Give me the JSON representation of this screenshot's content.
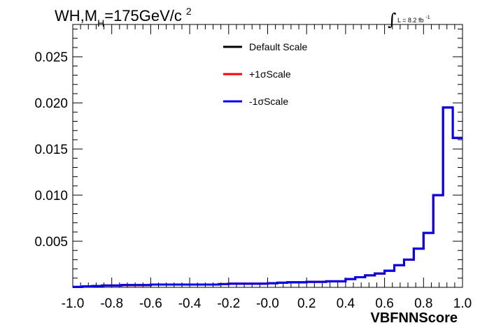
{
  "chart_data": {
    "type": "line",
    "title": {
      "prefix": "WH,M",
      "sub": "H",
      "suffix": "=175GeV/c",
      "sup": "2"
    },
    "lumi": {
      "integral": "∫",
      "text": "L = 8.2 fb",
      "sup": "-1"
    },
    "xlabel": "VBFNNScore",
    "ylabel": "",
    "xlim": [
      -1.0,
      1.0
    ],
    "ylim": [
      0,
      0.0285
    ],
    "x_ticks": [
      "-1.0",
      "-0.8",
      "-0.6",
      "-0.4",
      "-0.2",
      "-0.0",
      "0.2",
      "0.4",
      "0.6",
      "0.8",
      "1.0"
    ],
    "y_ticks": [
      "0.005",
      "0.010",
      "0.015",
      "0.020",
      "0.025"
    ],
    "legend_position": "top-center",
    "grid": false,
    "bin_edges": [
      -1.0,
      -0.95,
      -0.9,
      -0.85,
      -0.8,
      -0.75,
      -0.7,
      -0.65,
      -0.6,
      -0.55,
      -0.5,
      -0.45,
      -0.4,
      -0.35,
      -0.3,
      -0.25,
      -0.2,
      -0.15,
      -0.1,
      -0.05,
      0.0,
      0.05,
      0.1,
      0.15,
      0.2,
      0.25,
      0.3,
      0.35,
      0.4,
      0.45,
      0.5,
      0.55,
      0.6,
      0.65,
      0.7,
      0.75,
      0.8,
      0.85,
      0.9,
      0.95,
      1.0
    ],
    "series": [
      {
        "name": "Default Scale",
        "color": "#000000",
        "values": [
          5e-05,
          0.0001,
          0.00015,
          0.0002,
          0.0002,
          0.00025,
          0.00025,
          0.00025,
          0.0003,
          0.0003,
          0.0003,
          0.0003,
          0.0003,
          0.0003,
          0.0003,
          0.00035,
          0.0004,
          0.0004,
          0.0004,
          0.0004,
          0.00045,
          0.0005,
          0.00055,
          0.00055,
          0.0006,
          0.0006,
          0.00065,
          0.00065,
          0.0009,
          0.0011,
          0.0013,
          0.0015,
          0.0018,
          0.0024,
          0.003,
          0.0042,
          0.0059,
          0.01,
          0.0195,
          0.0162
        ]
      },
      {
        "name": "+1σScale",
        "color": "#ff0000",
        "values": [
          5e-05,
          0.0001,
          0.00015,
          0.0002,
          0.0002,
          0.00025,
          0.00025,
          0.00025,
          0.0003,
          0.0003,
          0.0003,
          0.0003,
          0.0003,
          0.0003,
          0.0003,
          0.00035,
          0.0004,
          0.0004,
          0.0004,
          0.0004,
          0.00045,
          0.0005,
          0.00055,
          0.00055,
          0.0006,
          0.0006,
          0.00065,
          0.00065,
          0.0009,
          0.0011,
          0.0013,
          0.0015,
          0.0018,
          0.0024,
          0.003,
          0.0042,
          0.0059,
          0.01,
          0.0195,
          0.0162
        ]
      },
      {
        "name": "-1σScale",
        "color": "#0000ee",
        "values": [
          5e-05,
          0.0001,
          0.00015,
          0.0002,
          0.0002,
          0.00025,
          0.00025,
          0.00025,
          0.0003,
          0.0003,
          0.0003,
          0.0003,
          0.0003,
          0.0003,
          0.0003,
          0.00035,
          0.0004,
          0.0004,
          0.0004,
          0.0004,
          0.00045,
          0.0005,
          0.00055,
          0.00055,
          0.0006,
          0.0006,
          0.00065,
          0.00065,
          0.0009,
          0.0011,
          0.0013,
          0.0015,
          0.0018,
          0.0024,
          0.003,
          0.0042,
          0.0059,
          0.01,
          0.0195,
          0.0162
        ]
      }
    ]
  }
}
